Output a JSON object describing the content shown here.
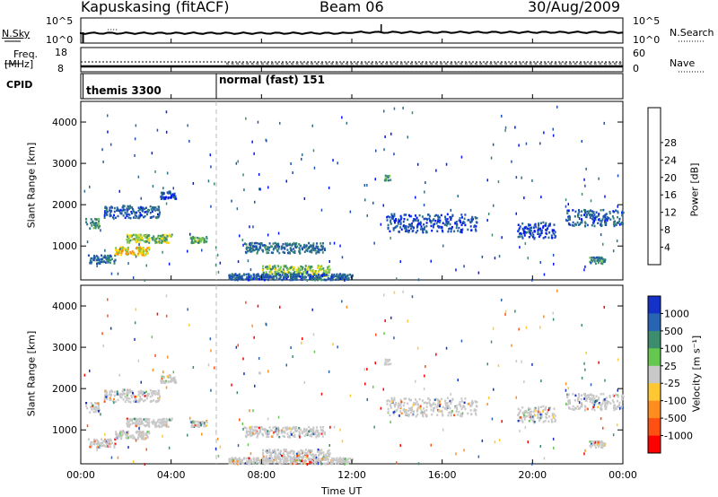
{
  "header": {
    "station": "Kapuskasing (fitACF)",
    "beam": "Beam 06",
    "date": "30/Aug/2009"
  },
  "top_panels": {
    "nsky_label": "N.Sky",
    "nsky_top": "10^5",
    "nsky_bottom": "10^0",
    "nsearch_label": "N.Search",
    "nsearch_top": "10^5",
    "nsearch_bottom": "10^0",
    "freq_label": "Freq.",
    "freq_unit": "[MHz]",
    "freq_top": "18",
    "freq_bottom": "8",
    "nave_label": "Nave",
    "nave_top": "60",
    "nave_bottom": "0",
    "cpid_label": "CPID",
    "cpid_modes": [
      "themis 3300",
      "normal (fast) 151"
    ]
  },
  "chart_data": [
    {
      "type": "heatmap",
      "name": "power",
      "ylabel": "Slant Range [km]",
      "yticks": [
        "1000",
        "2000",
        "3000",
        "4000"
      ],
      "colorbar_label": "Power [dB]",
      "colorbar_ticks": [
        "4",
        "8",
        "12",
        "16",
        "20",
        "24",
        "28"
      ],
      "colorbar_colors": [
        "#0014ff",
        "#1e50b4",
        "#2a6e8c",
        "#3c8c6e",
        "#7ec850",
        "#ffd700",
        "#ff8c00",
        "#ff4000",
        "#ff0000"
      ],
      "echo_regions": [
        {
          "t0": 0.2,
          "t1": 0.8,
          "r0": 1450,
          "r1": 1700,
          "power": 14
        },
        {
          "t0": 0.3,
          "t1": 1.5,
          "r0": 600,
          "r1": 800,
          "power": 10
        },
        {
          "t0": 1.0,
          "t1": 3.5,
          "r0": 1700,
          "r1": 2000,
          "power": 8
        },
        {
          "t0": 2.0,
          "t1": 4.0,
          "r0": 1100,
          "r1": 1300,
          "power": 18
        },
        {
          "t0": 1.5,
          "t1": 3.0,
          "r0": 800,
          "r1": 1000,
          "power": 22
        },
        {
          "t0": 3.5,
          "t1": 4.2,
          "r0": 2150,
          "r1": 2350,
          "power": 6
        },
        {
          "t0": 4.8,
          "t1": 5.6,
          "r0": 1100,
          "r1": 1250,
          "power": 16
        },
        {
          "t0": 7.2,
          "t1": 10.8,
          "r0": 850,
          "r1": 1100,
          "power": 10
        },
        {
          "t0": 8.0,
          "t1": 11.0,
          "r0": 300,
          "r1": 550,
          "power": 18
        },
        {
          "t0": 6.5,
          "t1": 12.0,
          "r0": 200,
          "r1": 350,
          "power": 8
        },
        {
          "t0": 13.5,
          "t1": 17.5,
          "r0": 1350,
          "r1": 1800,
          "power": 6
        },
        {
          "t0": 13.4,
          "t1": 13.7,
          "r0": 2600,
          "r1": 2750,
          "power": 14
        },
        {
          "t0": 19.3,
          "t1": 21.0,
          "r0": 1200,
          "r1": 1600,
          "power": 6
        },
        {
          "t0": 21.5,
          "t1": 24.0,
          "r0": 1500,
          "r1": 1900,
          "power": 8
        },
        {
          "t0": 22.5,
          "t1": 23.2,
          "r0": 600,
          "r1": 750,
          "power": 12
        }
      ]
    },
    {
      "type": "heatmap",
      "name": "velocity",
      "ylabel": "Slant Range [km]",
      "yticks": [
        "1000",
        "2000",
        "3000",
        "4000"
      ],
      "colorbar_label": "Velocity [m s⁻¹]",
      "colorbar_ticks": [
        "1000",
        "500",
        "100",
        "25",
        "-25",
        "-100",
        "-500",
        "-1000"
      ],
      "colorbar_colors": [
        "#1432c8",
        "#2864b4",
        "#3c8c6e",
        "#64c850",
        "#c8c8c8",
        "#ffc832",
        "#ff8c1e",
        "#ff5014",
        "#ff0000"
      ],
      "xticks": [
        "00:00",
        "04:00",
        "08:00",
        "12:00",
        "16:00",
        "20:00",
        "00:00"
      ],
      "xlabel": "Time UT",
      "x_range_hours": [
        0,
        24
      ],
      "y_range_km": [
        180,
        4500
      ]
    }
  ]
}
